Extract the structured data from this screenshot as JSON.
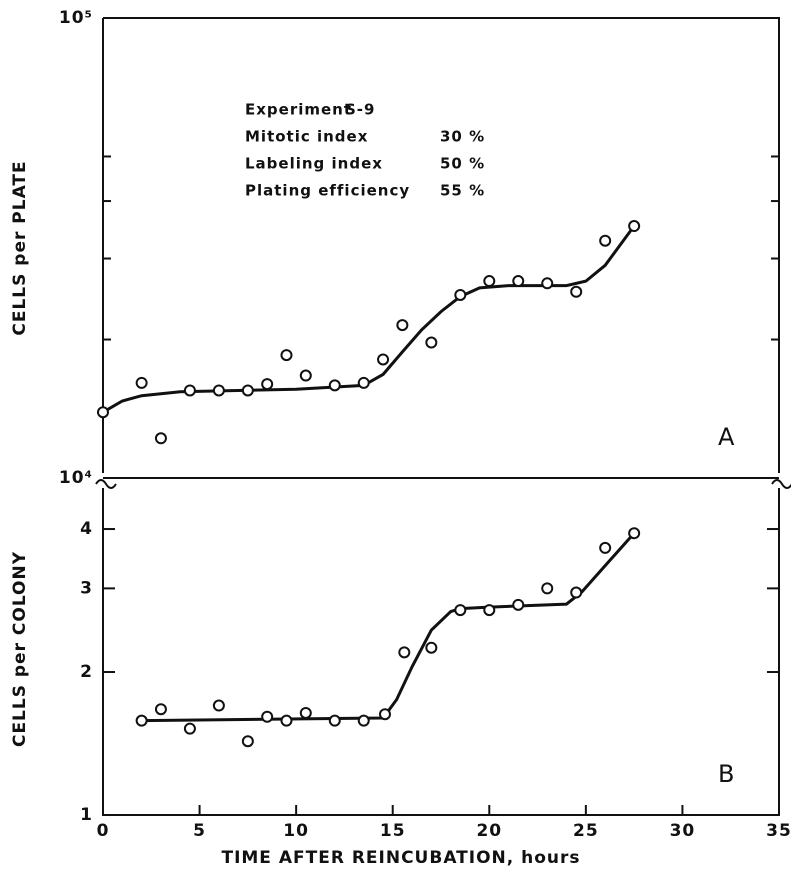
{
  "chart_data": [
    {
      "type": "scatter",
      "log_y": true,
      "panel_label": "A",
      "ylabel": "CELLS per PLATE",
      "x": [
        0,
        2,
        3,
        4.5,
        6,
        7.5,
        8.5,
        9.5,
        10.5,
        12,
        13.5,
        14.5,
        15.5,
        17,
        18.5,
        20,
        21.5,
        23,
        24.5,
        26,
        27.5
      ],
      "values": [
        13900,
        16100,
        12200,
        15500,
        15500,
        15500,
        16000,
        18500,
        16700,
        15900,
        16100,
        18100,
        21500,
        19700,
        25000,
        26800,
        26800,
        26500,
        25400,
        32800,
        35300
      ],
      "curve_x": [
        0,
        1,
        2,
        4,
        10,
        13.5,
        14.5,
        15.5,
        16.5,
        17.5,
        18.5,
        19.5,
        21,
        24,
        25,
        26,
        27.5
      ],
      "curve_y": [
        13900,
        14700,
        15100,
        15400,
        15600,
        15900,
        16800,
        18800,
        21000,
        23000,
        24800,
        25900,
        26200,
        26200,
        26800,
        29000,
        35300
      ],
      "xlim": [
        0,
        35
      ],
      "ylim": [
        10000,
        100000
      ],
      "yticks": [
        {
          "value": 10000,
          "label": "10⁴"
        },
        {
          "value": 100000,
          "label": "10⁵"
        }
      ],
      "yminorticks": [
        20000,
        30000,
        40000,
        50000
      ],
      "annotations": [
        {
          "text": "Experiment",
          "value": "S-9"
        },
        {
          "text": "Mitotic index",
          "value": "30 %"
        },
        {
          "text": "Labeling index",
          "value": "50 %"
        },
        {
          "text": "Plating efficiency",
          "value": "55 %"
        }
      ]
    },
    {
      "type": "scatter",
      "log_y": true,
      "panel_label": "B",
      "ylabel": "CELLS per COLONY",
      "xlabel": "TIME AFTER REINCUBATION, hours",
      "x": [
        2,
        3,
        4.5,
        6,
        7.5,
        8.5,
        9.5,
        10.5,
        12,
        13.5,
        14.6,
        15.6,
        17,
        18.5,
        20,
        21.5,
        23,
        24.5,
        26,
        27.5
      ],
      "values": [
        1.58,
        1.67,
        1.52,
        1.7,
        1.43,
        1.61,
        1.58,
        1.64,
        1.58,
        1.58,
        1.63,
        2.2,
        2.25,
        2.7,
        2.7,
        2.77,
        3.0,
        2.94,
        3.65,
        3.92
      ],
      "curve_x": [
        2,
        14.5,
        15.2,
        16,
        17,
        18,
        18.5,
        20,
        24,
        24.8,
        26,
        27.5
      ],
      "curve_y": [
        1.58,
        1.6,
        1.75,
        2.05,
        2.45,
        2.68,
        2.72,
        2.74,
        2.78,
        2.95,
        3.35,
        3.92
      ],
      "xlim": [
        0,
        35
      ],
      "xticks": [
        0,
        5,
        10,
        15,
        20,
        25,
        30,
        35
      ],
      "ylim": [
        1,
        5
      ],
      "yticks": [
        1,
        2,
        3,
        4
      ]
    }
  ]
}
